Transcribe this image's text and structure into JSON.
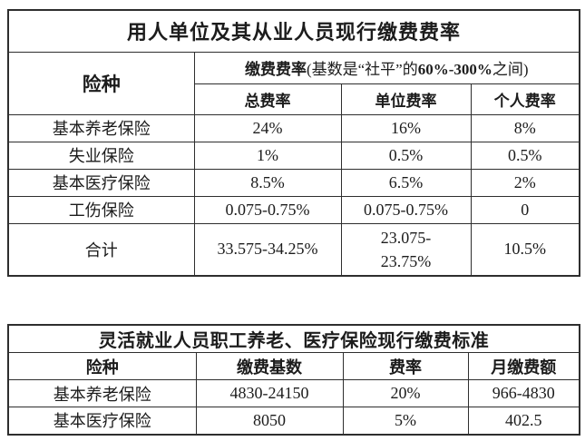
{
  "table1": {
    "title": "用人单位及其从业人员现行缴费费率",
    "header": {
      "risk_type": "险种",
      "rate_bold": "缴费费率",
      "rate_mid": "(基数是“社平”的",
      "rate_range": "60%-300%",
      "rate_suffix": "之间)",
      "sub_total": "总费率",
      "sub_employer": "单位费率",
      "sub_personal": "个人费率"
    },
    "rows": [
      {
        "name": "基本养老保险",
        "total": "24%",
        "employer": "16%",
        "personal": "8%"
      },
      {
        "name": "失业保险",
        "total": "1%",
        "employer": "0.5%",
        "personal": "0.5%"
      },
      {
        "name": "基本医疗保险",
        "total": "8.5%",
        "employer": "6.5%",
        "personal": "2%"
      },
      {
        "name": "工伤保险",
        "total": "0.075-0.75%",
        "employer": "0.075-0.75%",
        "personal": "0"
      }
    ],
    "total_row": {
      "name": "合计",
      "total": "33.575-34.25%",
      "employer_line1": "23.075-",
      "employer_line2": "23.75%",
      "personal": "10.5%"
    }
  },
  "table2": {
    "title": "灵活就业人员职工养老、医疗保险现行缴费标准",
    "headers": {
      "risk_type": "险种",
      "base": "缴费基数",
      "rate": "费率",
      "monthly": "月缴费额"
    },
    "rows": [
      {
        "name": "基本养老保险",
        "base": "4830-24150",
        "rate": "20%",
        "monthly": "966-4830"
      },
      {
        "name": "基本医疗保险",
        "base": "8050",
        "rate": "5%",
        "monthly": "402.5"
      }
    ]
  }
}
